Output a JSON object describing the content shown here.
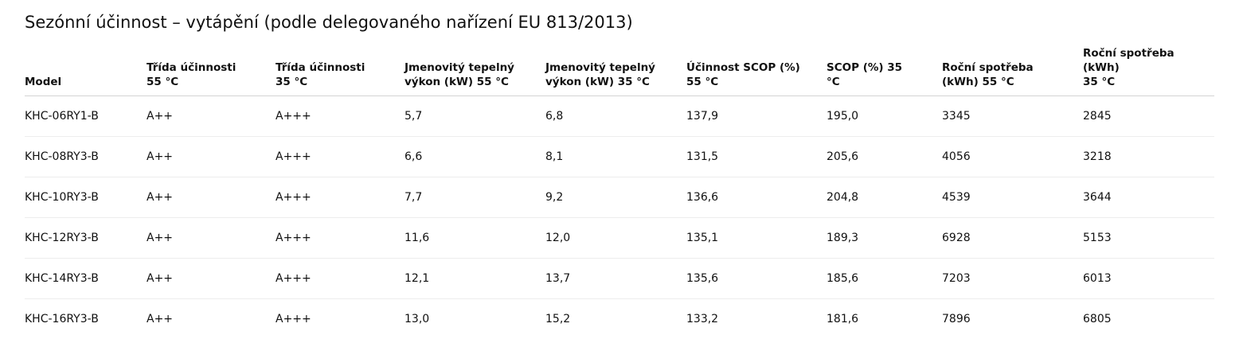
{
  "title": "Sezónní účinnost – vytápění (podle delegovaného nařízení EU 813/2013)",
  "headers": [
    [
      "Model"
    ],
    [
      "Třída účinnosti",
      "55 °C"
    ],
    [
      "Třída účinnosti",
      "35 °C"
    ],
    [
      "Jmenovitý tepelný",
      "výkon (kW) 55 °C"
    ],
    [
      "Jmenovitý tepelný",
      "výkon (kW) 35 °C"
    ],
    [
      "Účinnost SCOP (%)",
      "55 °C"
    ],
    [
      "SCOP (%) 35",
      "°C"
    ],
    [
      "Roční spotřeba",
      "(kWh) 55 °C"
    ],
    [
      "Roční spotřeba (kWh)",
      "35 °C"
    ]
  ],
  "rows": [
    [
      "KHC-06RY1-B",
      "A++",
      "A+++",
      "5,7",
      "6,8",
      "137,9",
      "195,0",
      "3345",
      "2845"
    ],
    [
      "KHC-08RY3-B",
      "A++",
      "A+++",
      "6,6",
      "8,1",
      "131,5",
      "205,6",
      "4056",
      "3218"
    ],
    [
      "KHC-10RY3-B",
      "A++",
      "A+++",
      "7,7",
      "9,2",
      "136,6",
      "204,8",
      "4539",
      "3644"
    ],
    [
      "KHC-12RY3-B",
      "A++",
      "A+++",
      "11,6",
      "12,0",
      "135,1",
      "189,3",
      "6928",
      "5153"
    ],
    [
      "KHC-14RY3-B",
      "A++",
      "A+++",
      "12,1",
      "13,7",
      "135,6",
      "185,6",
      "7203",
      "6013"
    ],
    [
      "KHC-16RY3-B",
      "A++",
      "A+++",
      "13,0",
      "15,2",
      "133,2",
      "181,6",
      "7896",
      "6805"
    ]
  ]
}
